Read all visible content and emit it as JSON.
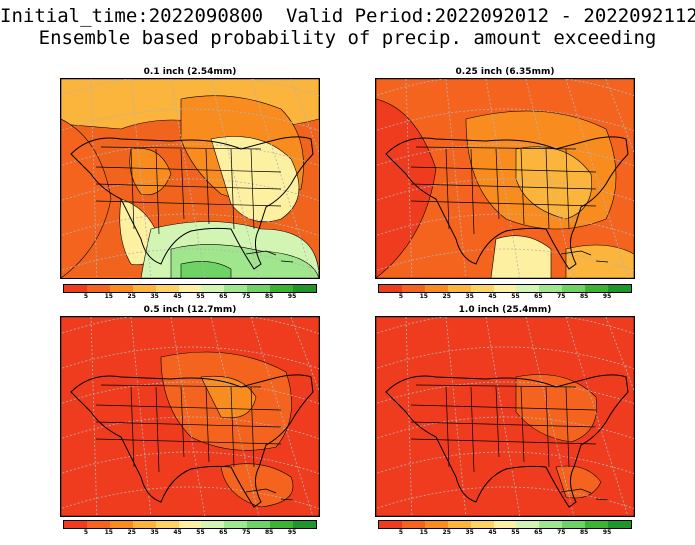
{
  "header": {
    "line1": "Initial_time:2022090800  Valid Period:2022092012 - 2022092112",
    "line2": "Ensemble based probability of precip. amount exceeding"
  },
  "panels": [
    {
      "title": "0.1 inch (2.54mm)"
    },
    {
      "title": "0.25 inch (6.35mm)"
    },
    {
      "title": "0.5 inch (12.7mm)"
    },
    {
      "title": "1.0 inch (25.4mm)"
    }
  ],
  "colorbar": {
    "labels": [
      "5",
      "15",
      "25",
      "35",
      "45",
      "55",
      "65",
      "75",
      "85",
      "95"
    ],
    "colors": [
      "#f03c1e",
      "#f5641e",
      "#f88c1e",
      "#fbb43c",
      "#fcd264",
      "#fdf0a0",
      "#d2f5b4",
      "#a0e68c",
      "#6ed264",
      "#3cb432",
      "#1e9628"
    ]
  }
}
